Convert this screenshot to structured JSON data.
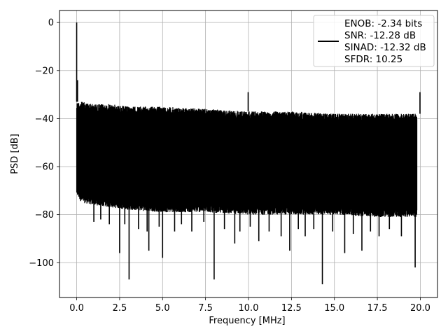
{
  "chart_data": {
    "type": "line",
    "xlabel": "Frequency [MHz]",
    "ylabel": "PSD [dB]",
    "xlim": [
      -1.0,
      21.0
    ],
    "ylim": [
      -114.5,
      5.0
    ],
    "xticks": [
      0.0,
      2.5,
      5.0,
      7.5,
      10.0,
      12.5,
      15.0,
      17.5,
      20.0
    ],
    "xtick_labels": [
      "0.0",
      "2.5",
      "5.0",
      "7.5",
      "10.0",
      "12.5",
      "15.0",
      "17.5",
      "20.0"
    ],
    "yticks": [
      0,
      -20,
      -40,
      -60,
      -80,
      -100
    ],
    "ytick_labels": [
      "0",
      "−20",
      "−40",
      "−60",
      "−80",
      "−100"
    ],
    "grid": true,
    "line_color": "#000000",
    "legend": {
      "placement": "top-right",
      "lines": [
        "ENOB: -2.34 bits",
        "SNR: -12.28 dB",
        "SINAD: -12.32 dB",
        "SFDR: 10.25"
      ]
    },
    "series": [
      {
        "envelope": {
          "x": [
            0.0,
            0.3,
            1.0,
            2.0,
            3.0,
            5.0,
            7.5,
            10.0,
            12.5,
            15.0,
            17.5,
            19.8
          ],
          "upper": [
            -33,
            -33,
            -34,
            -34,
            -35,
            -35,
            -36,
            -37,
            -37,
            -38,
            -38,
            -38
          ],
          "lower": [
            -72,
            -75,
            -76,
            -77,
            -78,
            -79,
            -79,
            -80,
            -80,
            -80,
            -81,
            -81
          ]
        },
        "dips": [
          {
            "x": 1.0,
            "y": -83
          },
          {
            "x": 1.4,
            "y": -82
          },
          {
            "x": 1.9,
            "y": -84
          },
          {
            "x": 2.5,
            "y": -96
          },
          {
            "x": 2.8,
            "y": -84
          },
          {
            "x": 3.05,
            "y": -107
          },
          {
            "x": 3.6,
            "y": -86
          },
          {
            "x": 4.1,
            "y": -87
          },
          {
            "x": 4.2,
            "y": -95
          },
          {
            "x": 4.8,
            "y": -85
          },
          {
            "x": 5.0,
            "y": -98
          },
          {
            "x": 5.7,
            "y": -87
          },
          {
            "x": 6.1,
            "y": -84
          },
          {
            "x": 6.7,
            "y": -87
          },
          {
            "x": 7.4,
            "y": -83
          },
          {
            "x": 8.0,
            "y": -107
          },
          {
            "x": 8.6,
            "y": -86
          },
          {
            "x": 9.2,
            "y": -92
          },
          {
            "x": 9.5,
            "y": -87
          },
          {
            "x": 10.1,
            "y": -85
          },
          {
            "x": 10.6,
            "y": -91
          },
          {
            "x": 11.2,
            "y": -87
          },
          {
            "x": 11.9,
            "y": -89
          },
          {
            "x": 12.4,
            "y": -95
          },
          {
            "x": 12.9,
            "y": -86
          },
          {
            "x": 13.3,
            "y": -89
          },
          {
            "x": 13.8,
            "y": -86
          },
          {
            "x": 14.3,
            "y": -109
          },
          {
            "x": 14.9,
            "y": -87
          },
          {
            "x": 15.6,
            "y": -96
          },
          {
            "x": 16.1,
            "y": -88
          },
          {
            "x": 16.6,
            "y": -95
          },
          {
            "x": 17.1,
            "y": -87
          },
          {
            "x": 17.6,
            "y": -89
          },
          {
            "x": 18.2,
            "y": -86
          },
          {
            "x": 18.9,
            "y": -89
          },
          {
            "x": 19.7,
            "y": -102
          }
        ],
        "spikes": [
          {
            "x": 0.0,
            "y": 0
          },
          {
            "x": 0.05,
            "y": -24
          },
          {
            "x": 9.98,
            "y": -29
          },
          {
            "x": 19.98,
            "y": -29
          }
        ]
      }
    ]
  }
}
